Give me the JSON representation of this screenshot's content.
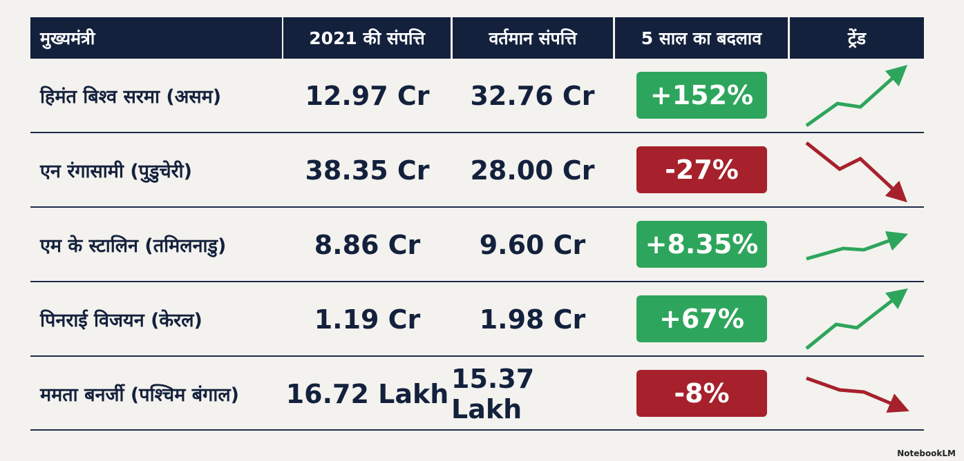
{
  "table": {
    "header": [
      "मुख्यमंत्री",
      "2021 की संपत्ति",
      "वर्तमान संपत्ति",
      "5 साल का बदलाव",
      "ट्रेंड"
    ],
    "rows": [
      [
        "हिमंत बिश्व सरमा (असम)",
        "12.97 Cr",
        "32.76 Cr",
        "+152%"
      ],
      [
        "एन रंगासामी (पुडुचेरी)",
        "38.35 Cr",
        "28.00 Cr",
        "-27%"
      ],
      [
        "एम के स्टालिन (तमिलनाडु)",
        "8.86 Cr",
        "9.60 Cr",
        "+8.35%"
      ],
      [
        "पिनराई विजयन (केरल)",
        "1.19 Cr",
        "1.98 Cr",
        "+67%"
      ],
      [
        "ममता बनर्जी (पश्चिम बंगाल)",
        "16.72 Lakh",
        "15.37 Lakh",
        "-8%"
      ]
    ]
  },
  "footer": {
    "brand": "NotebookLM"
  }
}
